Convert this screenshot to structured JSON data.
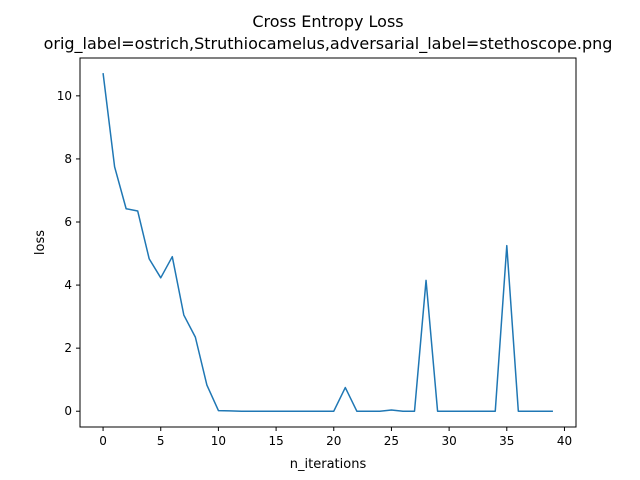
{
  "chart_data": {
    "type": "line",
    "title": "Cross Entropy Loss",
    "subtitle": "orig_label=ostrich,Struthiocamelus,adversarial_label=stethoscope.png",
    "xlabel": "n_iterations",
    "ylabel": "loss",
    "xlim": [
      -2,
      41
    ],
    "ylim": [
      -0.5,
      11.2
    ],
    "xticks": [
      0,
      5,
      10,
      15,
      20,
      25,
      30,
      35,
      40
    ],
    "yticks": [
      0,
      2,
      4,
      6,
      8,
      10
    ],
    "grid": false,
    "line_color": "#1f77b4",
    "series": [
      {
        "x": [
          0,
          1,
          2,
          3,
          4,
          5,
          6,
          7,
          8,
          9,
          10,
          11,
          12,
          13,
          14,
          15,
          16,
          17,
          18,
          19,
          20,
          21,
          22,
          23,
          24,
          25,
          26,
          27,
          28,
          29,
          30,
          31,
          32,
          33,
          34,
          35,
          36,
          37,
          38,
          39
        ],
        "values": [
          10.72,
          7.75,
          6.42,
          6.35,
          4.83,
          4.23,
          4.9,
          3.05,
          2.35,
          0.83,
          0.02,
          0.01,
          0.0,
          0.0,
          0.0,
          0.0,
          0.0,
          0.0,
          0.0,
          0.0,
          0.0,
          0.75,
          0.0,
          0.0,
          0.0,
          0.04,
          0.0,
          0.0,
          4.15,
          0.0,
          0.0,
          0.0,
          0.0,
          0.0,
          0.0,
          5.25,
          0.0,
          0.0,
          0.0,
          0.0
        ]
      }
    ]
  }
}
